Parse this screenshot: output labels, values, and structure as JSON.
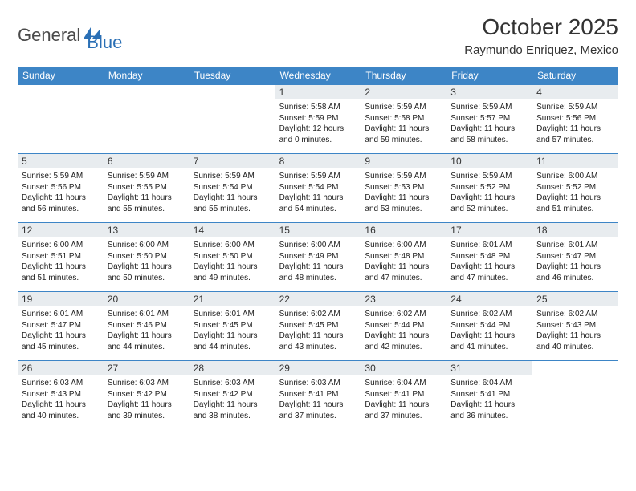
{
  "logo": {
    "text_general": "General",
    "text_blue": "Blue",
    "icon_color": "#2a6fb5"
  },
  "header": {
    "month_title": "October 2025",
    "location": "Raymundo Enriquez, Mexico"
  },
  "colors": {
    "header_bar": "#3d85c6",
    "day_number_bg": "#e8ecef",
    "cell_border_top": "#3d85c6",
    "background": "#ffffff",
    "text": "#222222"
  },
  "day_names": [
    "Sunday",
    "Monday",
    "Tuesday",
    "Wednesday",
    "Thursday",
    "Friday",
    "Saturday"
  ],
  "weeks": [
    [
      null,
      null,
      null,
      {
        "n": "1",
        "sr": "5:58 AM",
        "ss": "5:59 PM",
        "d1": "12 hours",
        "d2": "and 0 minutes."
      },
      {
        "n": "2",
        "sr": "5:59 AM",
        "ss": "5:58 PM",
        "d1": "11 hours",
        "d2": "and 59 minutes."
      },
      {
        "n": "3",
        "sr": "5:59 AM",
        "ss": "5:57 PM",
        "d1": "11 hours",
        "d2": "and 58 minutes."
      },
      {
        "n": "4",
        "sr": "5:59 AM",
        "ss": "5:56 PM",
        "d1": "11 hours",
        "d2": "and 57 minutes."
      }
    ],
    [
      {
        "n": "5",
        "sr": "5:59 AM",
        "ss": "5:56 PM",
        "d1": "11 hours",
        "d2": "and 56 minutes."
      },
      {
        "n": "6",
        "sr": "5:59 AM",
        "ss": "5:55 PM",
        "d1": "11 hours",
        "d2": "and 55 minutes."
      },
      {
        "n": "7",
        "sr": "5:59 AM",
        "ss": "5:54 PM",
        "d1": "11 hours",
        "d2": "and 55 minutes."
      },
      {
        "n": "8",
        "sr": "5:59 AM",
        "ss": "5:54 PM",
        "d1": "11 hours",
        "d2": "and 54 minutes."
      },
      {
        "n": "9",
        "sr": "5:59 AM",
        "ss": "5:53 PM",
        "d1": "11 hours",
        "d2": "and 53 minutes."
      },
      {
        "n": "10",
        "sr": "5:59 AM",
        "ss": "5:52 PM",
        "d1": "11 hours",
        "d2": "and 52 minutes."
      },
      {
        "n": "11",
        "sr": "6:00 AM",
        "ss": "5:52 PM",
        "d1": "11 hours",
        "d2": "and 51 minutes."
      }
    ],
    [
      {
        "n": "12",
        "sr": "6:00 AM",
        "ss": "5:51 PM",
        "d1": "11 hours",
        "d2": "and 51 minutes."
      },
      {
        "n": "13",
        "sr": "6:00 AM",
        "ss": "5:50 PM",
        "d1": "11 hours",
        "d2": "and 50 minutes."
      },
      {
        "n": "14",
        "sr": "6:00 AM",
        "ss": "5:50 PM",
        "d1": "11 hours",
        "d2": "and 49 minutes."
      },
      {
        "n": "15",
        "sr": "6:00 AM",
        "ss": "5:49 PM",
        "d1": "11 hours",
        "d2": "and 48 minutes."
      },
      {
        "n": "16",
        "sr": "6:00 AM",
        "ss": "5:48 PM",
        "d1": "11 hours",
        "d2": "and 47 minutes."
      },
      {
        "n": "17",
        "sr": "6:01 AM",
        "ss": "5:48 PM",
        "d1": "11 hours",
        "d2": "and 47 minutes."
      },
      {
        "n": "18",
        "sr": "6:01 AM",
        "ss": "5:47 PM",
        "d1": "11 hours",
        "d2": "and 46 minutes."
      }
    ],
    [
      {
        "n": "19",
        "sr": "6:01 AM",
        "ss": "5:47 PM",
        "d1": "11 hours",
        "d2": "and 45 minutes."
      },
      {
        "n": "20",
        "sr": "6:01 AM",
        "ss": "5:46 PM",
        "d1": "11 hours",
        "d2": "and 44 minutes."
      },
      {
        "n": "21",
        "sr": "6:01 AM",
        "ss": "5:45 PM",
        "d1": "11 hours",
        "d2": "and 44 minutes."
      },
      {
        "n": "22",
        "sr": "6:02 AM",
        "ss": "5:45 PM",
        "d1": "11 hours",
        "d2": "and 43 minutes."
      },
      {
        "n": "23",
        "sr": "6:02 AM",
        "ss": "5:44 PM",
        "d1": "11 hours",
        "d2": "and 42 minutes."
      },
      {
        "n": "24",
        "sr": "6:02 AM",
        "ss": "5:44 PM",
        "d1": "11 hours",
        "d2": "and 41 minutes."
      },
      {
        "n": "25",
        "sr": "6:02 AM",
        "ss": "5:43 PM",
        "d1": "11 hours",
        "d2": "and 40 minutes."
      }
    ],
    [
      {
        "n": "26",
        "sr": "6:03 AM",
        "ss": "5:43 PM",
        "d1": "11 hours",
        "d2": "and 40 minutes."
      },
      {
        "n": "27",
        "sr": "6:03 AM",
        "ss": "5:42 PM",
        "d1": "11 hours",
        "d2": "and 39 minutes."
      },
      {
        "n": "28",
        "sr": "6:03 AM",
        "ss": "5:42 PM",
        "d1": "11 hours",
        "d2": "and 38 minutes."
      },
      {
        "n": "29",
        "sr": "6:03 AM",
        "ss": "5:41 PM",
        "d1": "11 hours",
        "d2": "and 37 minutes."
      },
      {
        "n": "30",
        "sr": "6:04 AM",
        "ss": "5:41 PM",
        "d1": "11 hours",
        "d2": "and 37 minutes."
      },
      {
        "n": "31",
        "sr": "6:04 AM",
        "ss": "5:41 PM",
        "d1": "11 hours",
        "d2": "and 36 minutes."
      },
      null
    ]
  ],
  "labels": {
    "sunrise_prefix": "Sunrise: ",
    "sunset_prefix": "Sunset: ",
    "daylight_prefix": "Daylight: "
  }
}
